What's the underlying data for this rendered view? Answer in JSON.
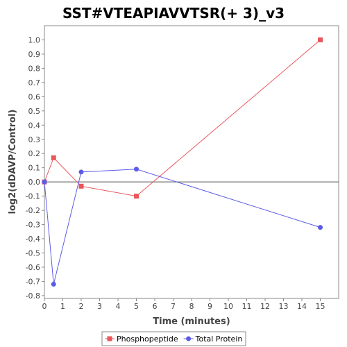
{
  "chart_data": {
    "type": "line",
    "title": "SST#VTEAPIAVVTSR(+ 3)_v3",
    "xlabel": "Time (minutes)",
    "ylabel": "log2(dDAVP/Control)",
    "xlim": [
      0,
      16
    ],
    "ylim": [
      -0.82,
      1.1
    ],
    "x_ticks": [
      0,
      1,
      2,
      3,
      4,
      5,
      6,
      7,
      8,
      9,
      10,
      11,
      12,
      13,
      14,
      15
    ],
    "y_ticks": [
      -0.8,
      -0.7,
      -0.6,
      -0.5,
      -0.4,
      -0.3,
      -0.2,
      -0.1,
      0.0,
      0.1,
      0.2,
      0.3,
      0.4,
      0.5,
      0.6,
      0.7,
      0.8,
      0.9,
      1.0
    ],
    "zero_line": true,
    "grid": false,
    "legend_position": "bottom",
    "series": [
      {
        "name": "Phosphopeptide",
        "color": "#e8575a",
        "marker": "square",
        "x": [
          0,
          0.5,
          2,
          5,
          15
        ],
        "y": [
          0.0,
          0.17,
          -0.03,
          -0.1,
          1.0
        ]
      },
      {
        "name": "Total Protein",
        "color": "#5b5be8",
        "marker": "circle",
        "x": [
          0,
          0.5,
          2,
          5,
          15
        ],
        "y": [
          0.0,
          -0.72,
          0.07,
          0.09,
          -0.32
        ]
      }
    ]
  }
}
